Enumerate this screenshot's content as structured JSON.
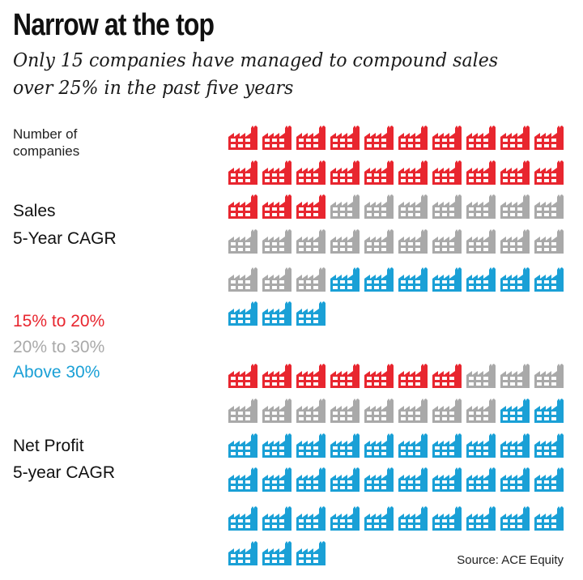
{
  "title": "Narrow at the top",
  "subtitle": [
    "Only 15 companies have managed to compound sales",
    "over 25% in the past five years"
  ],
  "unit_label": [
    "Number of",
    "companies"
  ],
  "source": "Source: ACE Equity",
  "colors": {
    "15% to 20%": "#e8262f",
    "20% to 30%": "#a9a9a9",
    "Above 30%": "#1aa0d6"
  },
  "icon": "factory-icon",
  "chart_data": {
    "type": "pictogram",
    "unit": "1 company per icon",
    "legend": [
      "15% to 20%",
      "20% to 30%",
      "Above 30%"
    ],
    "groups": [
      {
        "name": [
          "Sales",
          "5-Year CAGR"
        ],
        "counts": {
          "15% to 20%": 23,
          "20% to 30%": 20,
          "Above 30%": 10
        }
      },
      {
        "name": [
          "Net Profit",
          "5-year CAGR"
        ],
        "counts": {
          "15% to 20%": 7,
          "20% to 30%": 11,
          "Above 30%": 35
        }
      }
    ]
  }
}
